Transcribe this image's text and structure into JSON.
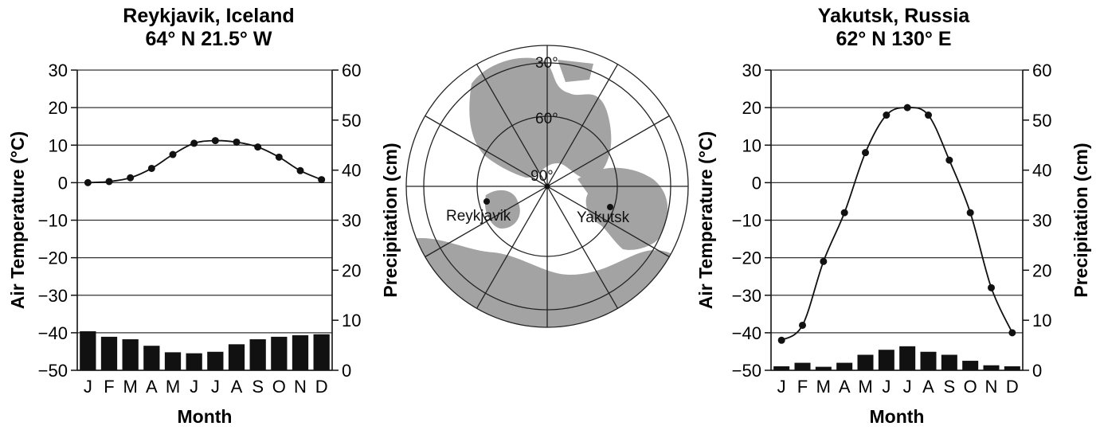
{
  "chart_data": [
    {
      "type": "bar+line",
      "title": "Reykjavik, Iceland",
      "subtitle": "64° N 21.5° W",
      "xlabel": "Month",
      "ylabel": "Air Temperature (°C)",
      "y2label": "Precipitation (cm)",
      "categories": [
        "J",
        "F",
        "M",
        "A",
        "M",
        "J",
        "J",
        "A",
        "S",
        "O",
        "N",
        "D"
      ],
      "ylim": [
        -50,
        30
      ],
      "y_ticks": [
        "30",
        "20",
        "10",
        "0",
        "−10",
        "−20",
        "−30",
        "−40",
        "−50"
      ],
      "y2lim": [
        0,
        60
      ],
      "y2_ticks": [
        "60",
        "50",
        "40",
        "30",
        "20",
        "10",
        "0"
      ],
      "grid": true,
      "series": [
        {
          "kind": "line",
          "axis": "temperature",
          "values": [
            0,
            0.3,
            1.3,
            3.8,
            7.5,
            10.5,
            11.2,
            10.8,
            9.5,
            6.8,
            3.2,
            0.8
          ]
        },
        {
          "kind": "bar",
          "axis": "precipitation",
          "values": [
            7.8,
            6.7,
            6.2,
            4.9,
            3.6,
            3.4,
            3.7,
            5.2,
            6.2,
            6.7,
            7.0,
            7.2
          ]
        }
      ]
    },
    {
      "type": "bar+line",
      "title": "Yakutsk, Russia",
      "subtitle": "62° N 130° E",
      "xlabel": "Month",
      "ylabel": "Air Temperature (°C)",
      "y2label": "Precipitation (cm)",
      "categories": [
        "J",
        "F",
        "M",
        "A",
        "M",
        "J",
        "J",
        "A",
        "S",
        "O",
        "N",
        "D"
      ],
      "ylim": [
        -50,
        30
      ],
      "y_ticks": [
        "30",
        "20",
        "10",
        "0",
        "−10",
        "−20",
        "−30",
        "−40",
        "−50"
      ],
      "y2lim": [
        0,
        60
      ],
      "y2_ticks": [
        "60",
        "50",
        "40",
        "30",
        "20",
        "10",
        "0"
      ],
      "grid": true,
      "series": [
        {
          "kind": "line",
          "axis": "temperature",
          "values": [
            -42,
            -38,
            -21,
            -8,
            8,
            18,
            20,
            18,
            6,
            -8,
            -28,
            -40
          ]
        },
        {
          "kind": "bar",
          "axis": "precipitation",
          "values": [
            0.8,
            1.5,
            0.7,
            1.5,
            3.1,
            4.1,
            4.8,
            3.7,
            3.1,
            1.9,
            1.0,
            0.8
          ]
        }
      ]
    }
  ],
  "map": {
    "latitude_labels": [
      "30°",
      "60°",
      "90°"
    ],
    "city_labels": {
      "reykjavik": "Reykjavik",
      "yakutsk": "Yakutsk"
    },
    "colors": {
      "land": "#a3a3a3",
      "ocean": "#ffffff",
      "line": "#222222"
    }
  }
}
